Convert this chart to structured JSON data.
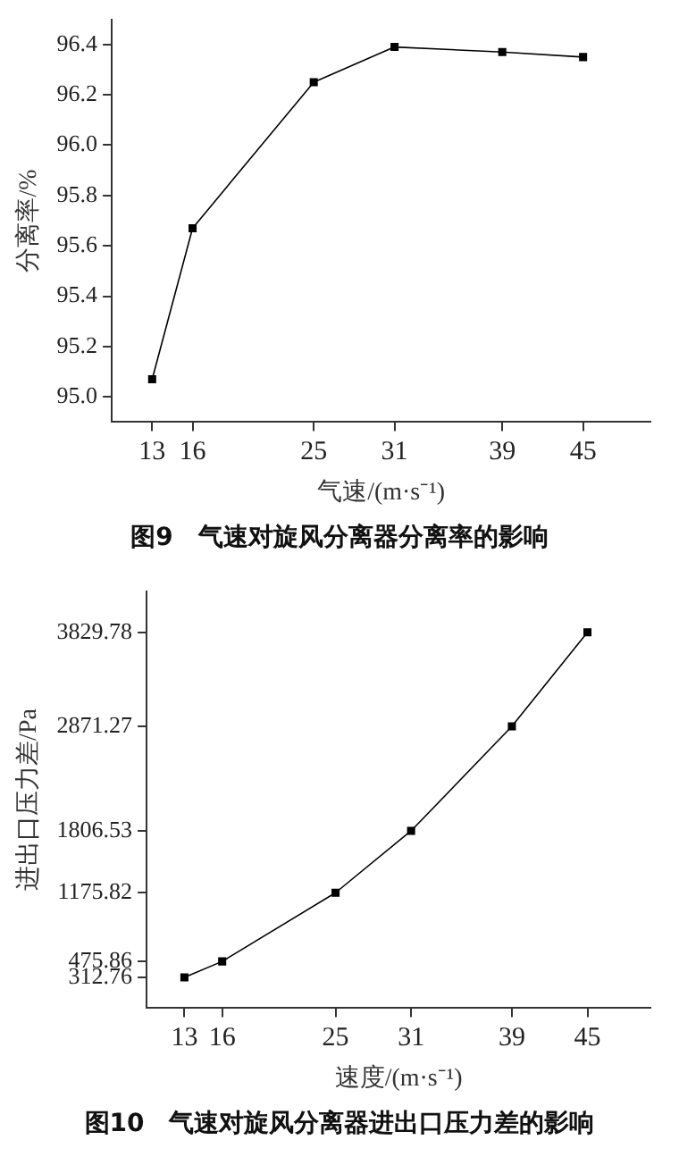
{
  "chart_data": [
    {
      "type": "line",
      "title": "图9　气速对旋风分离器分离率的影响",
      "xlabel": "气速/(m·s⁻¹)",
      "ylabel": "分离率/%",
      "x": [
        13,
        16,
        25,
        31,
        39,
        45
      ],
      "series": [
        {
          "color": "#000000",
          "values": [
            95.07,
            95.67,
            96.25,
            96.39,
            96.37,
            96.35
          ]
        }
      ],
      "xlim": [
        10,
        50
      ],
      "xticks": [
        13,
        16,
        25,
        31,
        39,
        45
      ],
      "ylim": [
        94.9,
        96.5
      ],
      "yticks": [
        {
          "value": 95.0,
          "label": "95.0"
        },
        95.2,
        95.4,
        95.6,
        95.8,
        {
          "value": 96.0,
          "label": "96.0"
        },
        96.2,
        96.4
      ],
      "grid": false,
      "legend": false,
      "marker": "square",
      "line_style": "solid"
    },
    {
      "type": "line",
      "title": "图10　气速对旋风分离器进出口压力差的影响",
      "xlabel": "速度/(m·s⁻¹)",
      "ylabel": "进出口压力差/Pa",
      "x": [
        13,
        16,
        25,
        31,
        39,
        45
      ],
      "series": [
        {
          "color": "#000000",
          "values": [
            312.76,
            475.86,
            1175.82,
            1806.53,
            2871.27,
            3829.78
          ]
        }
      ],
      "xlim": [
        10,
        50
      ],
      "xticks": [
        13,
        16,
        25,
        31,
        39,
        45
      ],
      "ylim": [
        0,
        4250
      ],
      "yticks": [
        312.76,
        475.86,
        1175.82,
        1806.53,
        2871.27,
        3829.78
      ],
      "grid": false,
      "legend": false,
      "marker": "square",
      "line_style": "solid"
    }
  ]
}
